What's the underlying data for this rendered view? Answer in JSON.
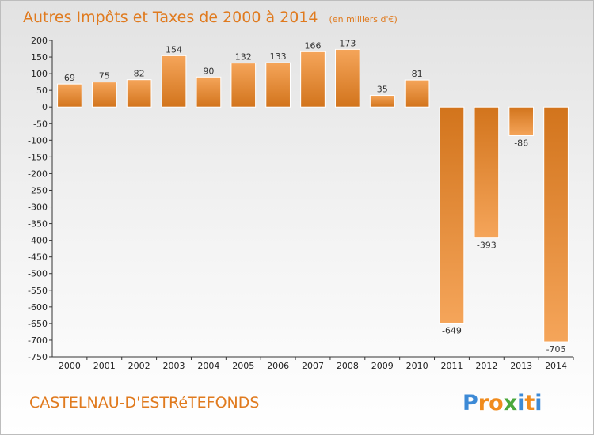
{
  "chart_data": {
    "type": "bar",
    "title": "Autres Impôts et Taxes de 2000 à 2014",
    "subtitle": "(en milliers d'€)",
    "categories": [
      "2000",
      "2001",
      "2002",
      "2003",
      "2004",
      "2005",
      "2006",
      "2007",
      "2008",
      "2009",
      "2010",
      "2011",
      "2012",
      "2013",
      "2014"
    ],
    "values": [
      69,
      75,
      82,
      154,
      90,
      132,
      133,
      166,
      173,
      35,
      81,
      -649,
      -393,
      -86,
      -705
    ],
    "ylim": [
      -750,
      200
    ],
    "yticks": [
      200,
      150,
      100,
      50,
      0,
      -50,
      -100,
      -150,
      -200,
      -250,
      -300,
      -350,
      -400,
      -450,
      -500,
      -550,
      -600,
      -650,
      -700,
      -750
    ],
    "grid": false,
    "bar_color_dark": "#d2741c",
    "bar_color_light": "#f5a55a"
  },
  "footer": {
    "place_name": "CASTELNAU-D'ESTRéTEFONDS",
    "logo_letters": [
      "P",
      "r",
      "o",
      "x",
      "i",
      "t",
      "i"
    ],
    "logo_colors": [
      "#3d8ad6",
      "#f08b1d",
      "#f08b1d",
      "#4aa83c",
      "#3d8ad6",
      "#f08b1d",
      "#3d8ad6"
    ]
  }
}
